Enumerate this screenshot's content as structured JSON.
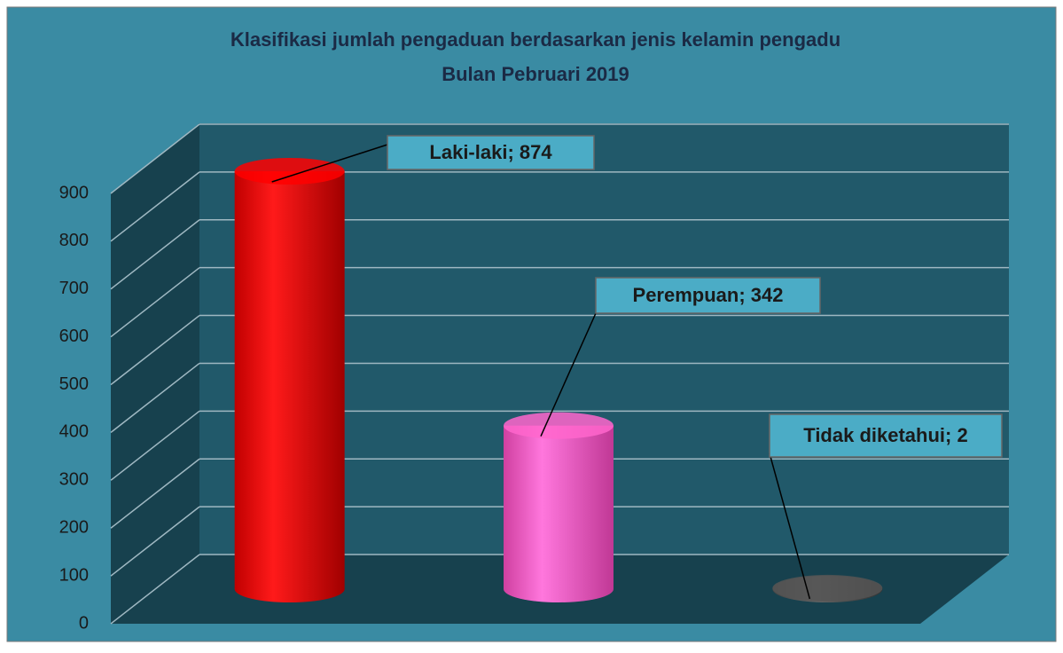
{
  "chart_data": {
    "type": "bar3d",
    "title": "Klasifikasi jumlah pengaduan berdasarkan jenis kelamin pengadu",
    "subtitle": "Bulan Pebruari 2019",
    "values": [
      874,
      342,
      2
    ],
    "value_labels": [
      "Laki-laki; 874",
      "Perempuan; 342",
      "Tidak diketahui; 2"
    ],
    "colors": [
      "#ff0000",
      "#ff66cc",
      "#555555"
    ],
    "ylim": [
      0,
      900
    ],
    "yticks": [
      0,
      100,
      200,
      300,
      400,
      500,
      600,
      700,
      800,
      900
    ],
    "grid": true
  }
}
